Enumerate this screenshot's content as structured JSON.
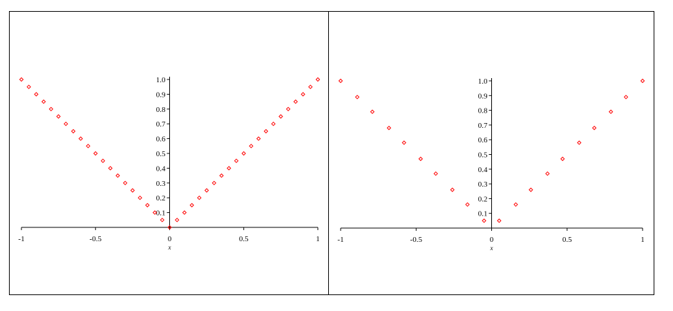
{
  "chart_data": [
    {
      "type": "scatter",
      "xlabel": "x",
      "x": [
        -1,
        -0.95,
        -0.9,
        -0.85,
        -0.8,
        -0.75,
        -0.7,
        -0.65,
        -0.6,
        -0.55,
        -0.5,
        -0.45,
        -0.4,
        -0.35,
        -0.3,
        -0.25,
        -0.2,
        -0.15,
        -0.1,
        -0.05,
        0,
        0.05,
        0.1,
        0.15,
        0.2,
        0.25,
        0.3,
        0.35,
        0.4,
        0.45,
        0.5,
        0.55,
        0.6,
        0.65,
        0.7,
        0.75,
        0.8,
        0.85,
        0.9,
        0.95,
        1
      ],
      "series": [
        {
          "color": "#ff0000",
          "values": [
            1,
            0.95,
            0.9,
            0.85,
            0.8,
            0.75,
            0.7,
            0.65,
            0.6,
            0.55,
            0.5,
            0.45,
            0.4,
            0.35,
            0.3,
            0.25,
            0.2,
            0.15,
            0.1,
            0.05,
            0,
            0.05,
            0.1,
            0.15,
            0.2,
            0.25,
            0.3,
            0.35,
            0.4,
            0.45,
            0.5,
            0.55,
            0.6,
            0.65,
            0.7,
            0.75,
            0.8,
            0.85,
            0.9,
            0.95,
            1
          ]
        }
      ],
      "xlim": [
        -1,
        1
      ],
      "ylim": [
        0,
        1
      ],
      "xticks": [
        -1,
        -0.5,
        0,
        0.5,
        1
      ],
      "yticks": [
        0.1,
        0.2,
        0.3,
        0.4,
        0.5,
        0.6,
        0.7,
        0.8,
        0.9,
        {
          "value": 1,
          "label": "1.0"
        }
      ]
    },
    {
      "type": "scatter",
      "xlabel": "x",
      "x": [
        -1,
        -0.89,
        -0.79,
        -0.68,
        -0.58,
        -0.47,
        -0.37,
        -0.26,
        -0.16,
        -0.05,
        0.05,
        0.16,
        0.26,
        0.37,
        0.47,
        0.58,
        0.68,
        0.79,
        0.89,
        1
      ],
      "series": [
        {
          "color": "#ff0000",
          "values": [
            1,
            0.89,
            0.79,
            0.68,
            0.58,
            0.47,
            0.37,
            0.26,
            0.16,
            0.05,
            0.05,
            0.16,
            0.26,
            0.37,
            0.47,
            0.58,
            0.68,
            0.79,
            0.89,
            1
          ]
        }
      ],
      "xlim": [
        -1,
        1
      ],
      "ylim": [
        0,
        1
      ],
      "xticks": [
        -1,
        -0.5,
        0,
        0.5,
        1
      ],
      "yticks": [
        0.1,
        0.2,
        0.3,
        0.4,
        0.5,
        0.6,
        0.7,
        0.8,
        0.9,
        {
          "value": 1,
          "label": "1.0"
        }
      ]
    }
  ]
}
